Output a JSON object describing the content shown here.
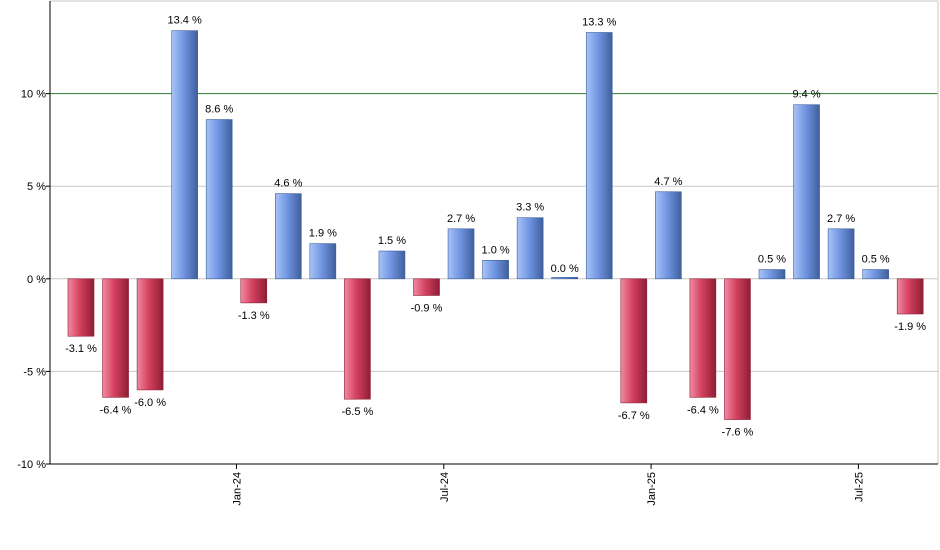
{
  "colors": {
    "positive_light": "#a9c3f6",
    "positive_mid": "#7196e3",
    "positive_dark": "#3f5f9c",
    "negative_light": "#f08aa2",
    "negative_mid": "#d4415f",
    "negative_dark": "#8e1e35",
    "grid": "#c8c8c8",
    "reference_line": "#2e7d32",
    "axis": "#000000"
  },
  "chart_data": {
    "type": "bar",
    "title": "",
    "xlabel": "",
    "ylabel": "",
    "ylim": [
      -10,
      15
    ],
    "y_ticks": [
      -10,
      -5,
      0,
      5,
      10
    ],
    "y_tick_labels": [
      "-10 %",
      "-5 %",
      "0 %",
      "5 %",
      "10 %"
    ],
    "reference_line": 10,
    "grid": true,
    "x_ticks": [
      {
        "label": "Jan-24",
        "after_bar_index": 5
      },
      {
        "label": "Jul-24",
        "after_bar_index": 11
      },
      {
        "label": "Jan-25",
        "after_bar_index": 17
      },
      {
        "label": "Jul-25",
        "after_bar_index": 23
      }
    ],
    "values": [
      -3.1,
      -6.4,
      -6.0,
      13.4,
      8.6,
      -1.3,
      4.6,
      1.9,
      -6.5,
      1.5,
      -0.9,
      2.7,
      1.0,
      3.3,
      0.0,
      13.3,
      -6.7,
      4.7,
      -6.4,
      -7.6,
      0.5,
      9.4,
      2.7,
      0.5,
      -1.9
    ],
    "value_labels": [
      "-3.1 %",
      "-6.4 %",
      "-6.0 %",
      "13.4 %",
      "8.6 %",
      "-1.3 %",
      "4.6 %",
      "1.9 %",
      "-6.5 %",
      "1.5 %",
      "-0.9 %",
      "2.7 %",
      "1.0 %",
      "3.3 %",
      "0.0 %",
      "13.3 %",
      "-6.7 %",
      "4.7 %",
      "-6.4 %",
      "-7.6 %",
      "0.5 %",
      "9.4 %",
      "2.7 %",
      "0.5 %",
      "-1.9 %"
    ]
  }
}
